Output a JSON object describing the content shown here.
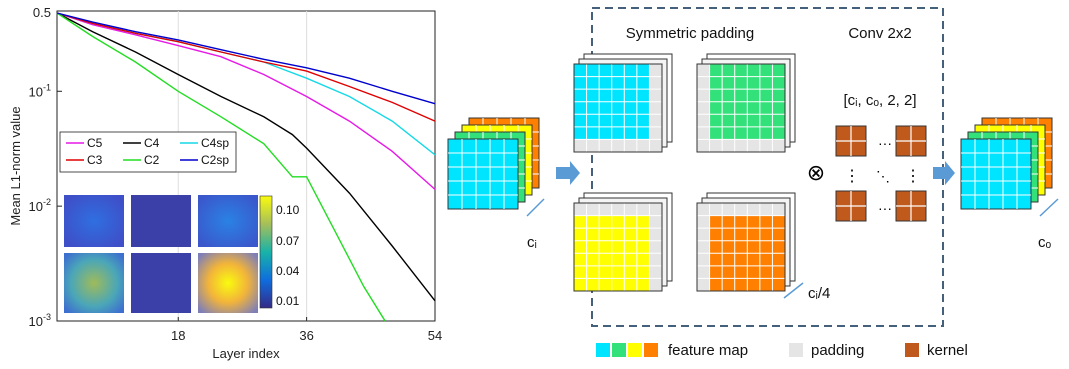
{
  "chart_data": {
    "type": "line",
    "xlabel": "Layer index",
    "ylabel": "Mean L1-norm value",
    "x_ticks": [
      "18",
      "36",
      "54"
    ],
    "y_ticks": [
      "10^-3",
      "10^-2",
      "10^-1",
      "0.5"
    ],
    "y_scale": "log",
    "xlim": [
      1,
      54
    ],
    "ylim": [
      0.001,
      0.5
    ],
    "grid": "vertical lines at 18 and 36",
    "legend_position": "inside-left",
    "series": [
      {
        "name": "C5",
        "color": "#e619e6",
        "x": [
          1,
          6,
          12,
          18,
          24,
          30,
          36,
          42,
          48,
          54
        ],
        "y": [
          0.48,
          0.38,
          0.31,
          0.25,
          0.2,
          0.14,
          0.09,
          0.055,
          0.03,
          0.014
        ]
      },
      {
        "name": "C4",
        "color": "#000000",
        "x": [
          1,
          6,
          12,
          18,
          24,
          30,
          34,
          36,
          42,
          48,
          54
        ],
        "y": [
          0.48,
          0.33,
          0.22,
          0.14,
          0.09,
          0.06,
          0.042,
          0.032,
          0.013,
          0.0045,
          0.0015
        ]
      },
      {
        "name": "C4sp",
        "color": "#16d9e6",
        "x": [
          1,
          6,
          12,
          18,
          24,
          30,
          36,
          42,
          48,
          54
        ],
        "y": [
          0.48,
          0.39,
          0.32,
          0.27,
          0.22,
          0.18,
          0.13,
          0.09,
          0.055,
          0.028
        ]
      },
      {
        "name": "C3",
        "color": "#e00000",
        "x": [
          1,
          6,
          12,
          18,
          24,
          30,
          36,
          42,
          48,
          54
        ],
        "y": [
          0.48,
          0.39,
          0.32,
          0.27,
          0.22,
          0.18,
          0.15,
          0.11,
          0.08,
          0.055
        ]
      },
      {
        "name": "C2",
        "color": "#22dd22",
        "x": [
          1,
          6,
          12,
          18,
          24,
          30,
          34,
          36,
          40,
          44,
          47
        ],
        "y": [
          0.48,
          0.3,
          0.18,
          0.1,
          0.06,
          0.035,
          0.018,
          0.018,
          0.006,
          0.002,
          0.001
        ]
      },
      {
        "name": "C2sp",
        "color": "#0000cc",
        "x": [
          1,
          6,
          12,
          18,
          24,
          30,
          36,
          42,
          48,
          54
        ],
        "y": [
          0.48,
          0.4,
          0.33,
          0.28,
          0.23,
          0.19,
          0.16,
          0.13,
          0.1,
          0.078
        ]
      }
    ],
    "colorbar": {
      "ticks": [
        "0.10",
        "0.07",
        "0.04",
        "0.01"
      ]
    }
  },
  "diagram": {
    "symmetric_padding": "Symmetric padding",
    "conv": "Conv 2x2",
    "kernel_shape": "[cᵢ, cₒ, 2, 2]",
    "ci": "cᵢ",
    "ci4": "cᵢ/4",
    "co": "cₒ",
    "otimes": "⊗",
    "hdots": "···",
    "vdots": "⋮",
    "ddots": "⋱"
  },
  "legend_bottom": {
    "feature_map": "feature map",
    "padding": "padding",
    "kernel": "kernel"
  },
  "colors": {
    "cyan": "#00e5ff",
    "green": "#33e17a",
    "yellow": "#ffff00",
    "orange": "#ff8000",
    "padding": "#e5e5e5",
    "kernel": "#c05a1c",
    "arrow": "#5b9bd5",
    "dashed": "#44607a"
  }
}
